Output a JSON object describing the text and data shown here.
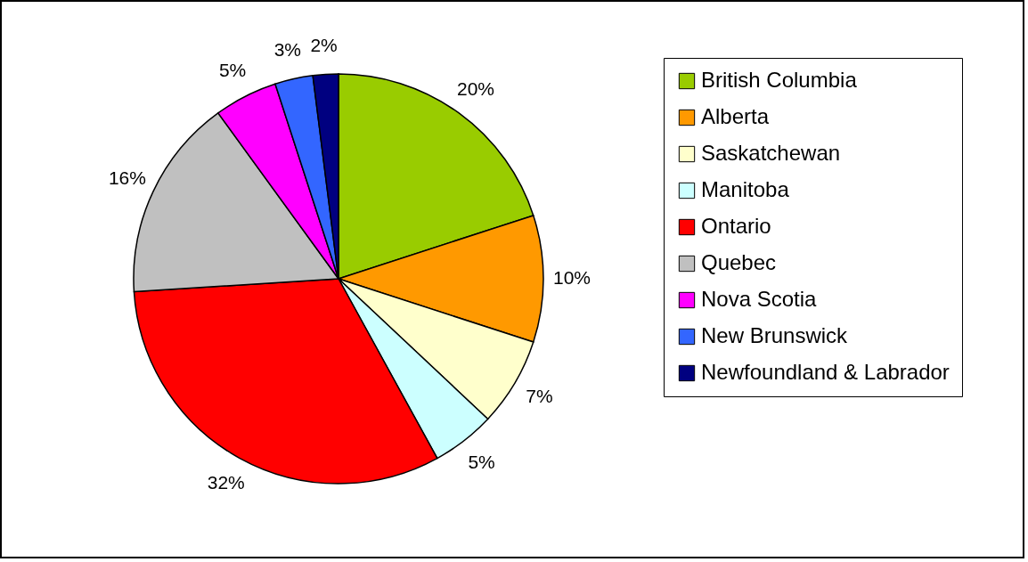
{
  "chart_data": {
    "type": "pie",
    "categories": [
      "British Columbia",
      "Alberta",
      "Saskatchewan",
      "Manitoba",
      "Ontario",
      "Quebec",
      "Nova Scotia",
      "New Brunswick",
      "Newfoundland & Labrador"
    ],
    "values": [
      20,
      10,
      7,
      5,
      32,
      16,
      5,
      3,
      2
    ],
    "colors": [
      "#99cc00",
      "#ff9900",
      "#ffffcc",
      "#ccffff",
      "#ff0000",
      "#c0c0c0",
      "#ff00ff",
      "#3366ff",
      "#000080"
    ],
    "value_labels": [
      "20%",
      "10%",
      "7%",
      "5%",
      "32%",
      "16%",
      "5%",
      "3%",
      "2%"
    ],
    "legend": "right"
  }
}
